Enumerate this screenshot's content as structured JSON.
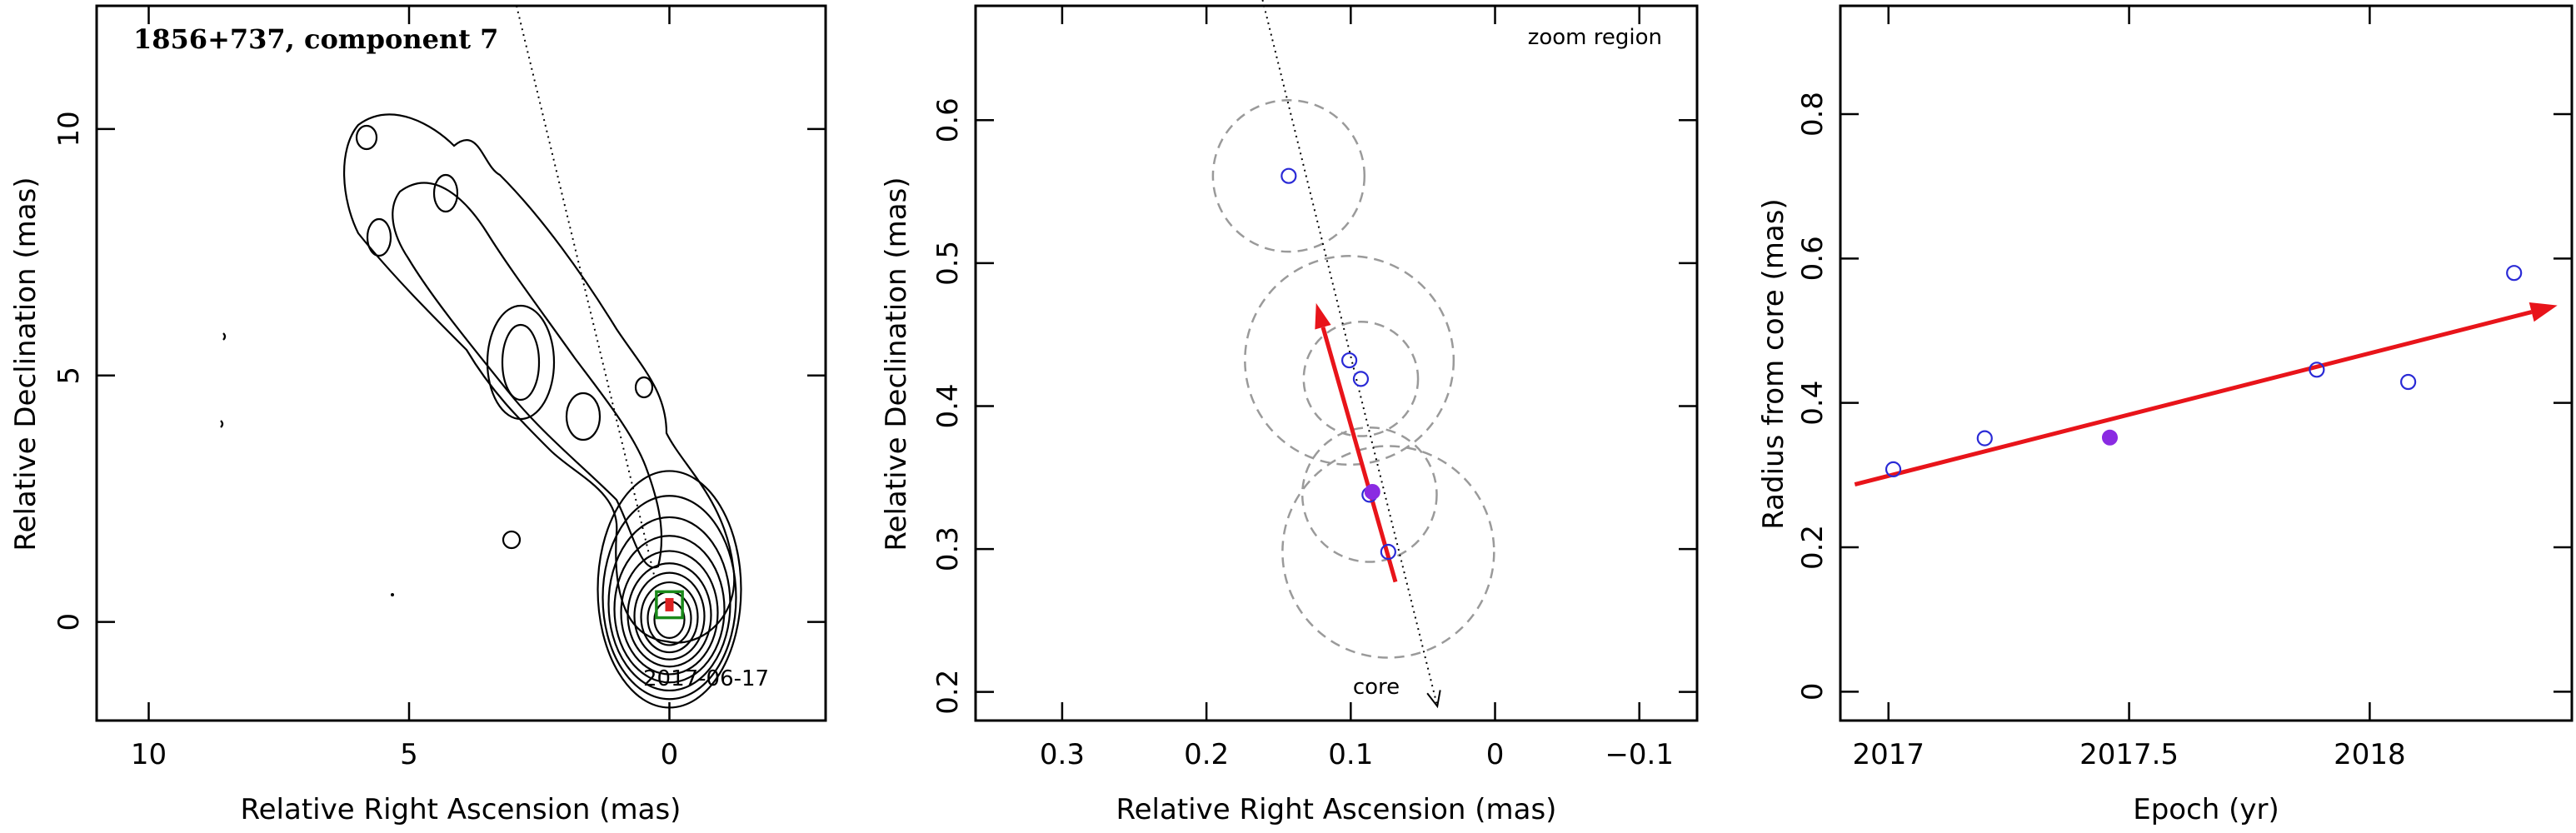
{
  "chart_data": [
    {
      "type": "contour",
      "title": "1856+737, component 7",
      "xlabel": "Relative Right Ascension (mas)",
      "ylabel": "Relative Declination (mas)",
      "xlim": [
        11,
        -3
      ],
      "ylim": [
        -2,
        12.5
      ],
      "xticks": [
        10,
        5,
        0
      ],
      "yticks": [
        0,
        5,
        10
      ],
      "date_label": "2017-06-17",
      "component_marker": {
        "x": 0,
        "y": 0.35,
        "size": 0.5
      }
    },
    {
      "type": "scatter",
      "annotation": "zoom region",
      "core_label": "core",
      "xlabel": "Relative Right Ascension (mas)",
      "ylabel": "Relative Declination (mas)",
      "xlim": [
        0.36,
        -0.14
      ],
      "ylim": [
        0.18,
        0.68
      ],
      "xticks": [
        0.3,
        0.2,
        0.1,
        0,
        -0.1
      ],
      "xtick_labels": [
        "0.3",
        "0.2",
        "0.1",
        "0",
        "−0.1"
      ],
      "yticks": [
        0.2,
        0.3,
        0.4,
        0.5,
        0.6
      ],
      "points": [
        {
          "x": 0.143,
          "y": 0.561,
          "r": 0.053
        },
        {
          "x": 0.101,
          "y": 0.432,
          "r": 0.073
        },
        {
          "x": 0.093,
          "y": 0.419,
          "r": 0.04
        },
        {
          "x": 0.087,
          "y": 0.338,
          "r": 0.047
        },
        {
          "x": 0.074,
          "y": 0.298,
          "r": 0.074
        }
      ],
      "current_point": {
        "x": 0.085,
        "y": 0.34
      },
      "velocity_arrow": {
        "from": [
          0.069,
          0.277
        ],
        "to": [
          0.124,
          0.472
        ]
      },
      "jet_axis": {
        "from": [
          0.165,
          0.7
        ],
        "to": [
          0.04,
          0.19
        ]
      }
    },
    {
      "type": "scatter",
      "xlabel": "Epoch (yr)",
      "ylabel": "Radius from core (mas)",
      "xlim": [
        2016.9,
        2018.42
      ],
      "ylim": [
        -0.04,
        0.95
      ],
      "xticks": [
        2017,
        2017.5,
        2018
      ],
      "yticks": [
        0,
        0.2,
        0.4,
        0.6,
        0.8
      ],
      "points": [
        {
          "x": 2017.01,
          "y": 0.308
        },
        {
          "x": 2017.2,
          "y": 0.351
        },
        {
          "x": 2017.89,
          "y": 0.446
        },
        {
          "x": 2018.08,
          "y": 0.429
        },
        {
          "x": 2018.3,
          "y": 0.58
        }
      ],
      "current_point": {
        "x": 2017.46,
        "y": 0.352
      },
      "fit_arrow": {
        "from": [
          2016.93,
          0.287
        ],
        "to": [
          2018.39,
          0.535
        ]
      }
    }
  ]
}
